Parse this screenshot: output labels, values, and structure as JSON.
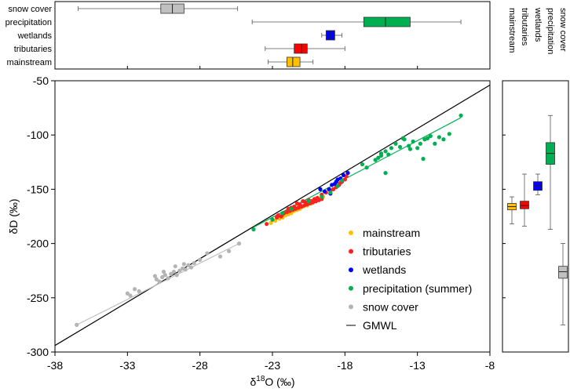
{
  "chart_data": [
    {
      "id": "top-box",
      "type": "box",
      "orientation": "horizontal",
      "categories": [
        "snow cover",
        "precipitation",
        "wetlands",
        "tributaries",
        "mainstream"
      ],
      "boxes": [
        {
          "name": "snow cover",
          "color": "#c0c0c0",
          "whisker_low": -36.4,
          "q1": -30.7,
          "median": -29.9,
          "q3": -29.1,
          "whisker_high": -25.4
        },
        {
          "name": "precipitation",
          "color": "#00b050",
          "whisker_low": -24.4,
          "q1": -16.7,
          "median": -15.2,
          "q3": -13.5,
          "whisker_high": -10.0
        },
        {
          "name": "wetlands",
          "color": "#0000ff",
          "whisker_low": -19.6,
          "q1": -19.3,
          "median": -19.0,
          "q3": -18.7,
          "whisker_high": -18.2
        },
        {
          "name": "tributaries",
          "color": "#ff0000",
          "whisker_low": -23.5,
          "q1": -21.5,
          "median": -21.0,
          "q3": -20.6,
          "whisker_high": -18.0
        },
        {
          "name": "mainstream",
          "color": "#ffc000",
          "whisker_low": -23.3,
          "q1": -22.0,
          "median": -21.6,
          "q3": -21.1,
          "whisker_high": -20.2
        }
      ],
      "xlim": [
        -38,
        -8
      ]
    },
    {
      "id": "scatter",
      "type": "scatter",
      "xlabel_main": "δ",
      "xlabel_sup": "18",
      "xlabel_rest": "O (‰)",
      "ylabel": "δD (‰)",
      "xlim": [
        -38,
        -8
      ],
      "ylim": [
        -300,
        -50
      ],
      "x_ticks": [
        "-38",
        "-33",
        "-28",
        "-23",
        "-18",
        "-13",
        "-8"
      ],
      "y_ticks": [
        "-50",
        "-100",
        "-150",
        "-200",
        "-250",
        "-300"
      ],
      "gmwl": {
        "name": "GMWL",
        "slope": 8,
        "intercept": 10
      },
      "fit_lines": [
        {
          "series": "snow cover",
          "color": "#c0c0c0",
          "x": [
            -36.5,
            -25.3
          ],
          "y": [
            -275,
            -200
          ]
        },
        {
          "series": "precipitation",
          "color": "#00b050",
          "x": [
            -24.3,
            -10.0
          ],
          "y": [
            -185,
            -84
          ]
        }
      ],
      "series": [
        {
          "name": "mainstream",
          "color": "#ffc000",
          "points": [
            [
              -23.1,
              -181
            ],
            [
              -22.8,
              -179
            ],
            [
              -22.5,
              -177
            ],
            [
              -22.3,
              -176
            ],
            [
              -22.1,
              -174
            ],
            [
              -21.9,
              -173
            ],
            [
              -21.7,
              -172
            ],
            [
              -21.5,
              -170
            ],
            [
              -21.3,
              -169
            ],
            [
              -21.1,
              -168
            ],
            [
              -20.9,
              -166
            ],
            [
              -20.6,
              -165
            ],
            [
              -20.3,
              -163
            ],
            [
              -20.0,
              -161
            ],
            [
              -19.8,
              -159
            ],
            [
              -19.5,
              -157
            ],
            [
              -21.8,
              -170
            ],
            [
              -21.2,
              -166
            ],
            [
              -20.7,
              -163
            ]
          ]
        },
        {
          "name": "tributaries",
          "color": "#ff2020",
          "points": [
            [
              -23.4,
              -182
            ],
            [
              -23.0,
              -178
            ],
            [
              -22.7,
              -176
            ],
            [
              -22.4,
              -175
            ],
            [
              -22.2,
              -172
            ],
            [
              -22.0,
              -171
            ],
            [
              -21.8,
              -170
            ],
            [
              -21.6,
              -169
            ],
            [
              -21.4,
              -168
            ],
            [
              -21.2,
              -167
            ],
            [
              -21.0,
              -166
            ],
            [
              -20.8,
              -165
            ],
            [
              -20.6,
              -164
            ],
            [
              -20.4,
              -163
            ],
            [
              -20.2,
              -162
            ],
            [
              -20.0,
              -161
            ],
            [
              -19.8,
              -160
            ],
            [
              -19.6,
              -159
            ],
            [
              -22.6,
              -174
            ],
            [
              -22.3,
              -173
            ],
            [
              -21.9,
              -168
            ],
            [
              -21.5,
              -166
            ],
            [
              -21.1,
              -164
            ],
            [
              -20.7,
              -162
            ],
            [
              -20.3,
              -161
            ],
            [
              -19.9,
              -158
            ],
            [
              -19.6,
              -155
            ],
            [
              -19.3,
              -153
            ],
            [
              -19.0,
              -151
            ],
            [
              -18.8,
              -150
            ],
            [
              -18.6,
              -148
            ],
            [
              -18.4,
              -146
            ],
            [
              -18.3,
              -144
            ],
            [
              -18.2,
              -143
            ],
            [
              -18.0,
              -141
            ],
            [
              -17.9,
              -138
            ],
            [
              -21.7,
              -167
            ],
            [
              -21.3,
              -163
            ],
            [
              -20.9,
              -161
            ],
            [
              -20.5,
              -160
            ],
            [
              -20.1,
              -159
            ]
          ]
        },
        {
          "name": "wetlands",
          "color": "#0000ff",
          "points": [
            [
              -19.7,
              -150
            ],
            [
              -19.4,
              -152
            ],
            [
              -19.1,
              -150
            ],
            [
              -18.9,
              -146
            ],
            [
              -18.7,
              -145
            ],
            [
              -18.5,
              -141
            ],
            [
              -18.3,
              -140
            ],
            [
              -18.1,
              -137
            ],
            [
              -17.8,
              -135
            ],
            [
              -19.0,
              -154
            ],
            [
              -18.6,
              -143
            ]
          ]
        },
        {
          "name": "precipitation (summer)",
          "color": "#00b050",
          "points": [
            [
              -24.3,
              -187
            ],
            [
              -23.0,
              -178
            ],
            [
              -22.3,
              -172
            ],
            [
              -21.7,
              -168
            ],
            [
              -20.5,
              -161
            ],
            [
              -19.6,
              -157
            ],
            [
              -19.0,
              -153
            ],
            [
              -18.5,
              -147
            ],
            [
              -18.2,
              -142
            ],
            [
              -16.8,
              -127
            ],
            [
              -16.5,
              -130
            ],
            [
              -15.9,
              -123
            ],
            [
              -15.7,
              -121
            ],
            [
              -15.5,
              -119
            ],
            [
              -15.2,
              -115
            ],
            [
              -15.0,
              -118
            ],
            [
              -14.8,
              -112
            ],
            [
              -14.5,
              -108
            ],
            [
              -14.2,
              -111
            ],
            [
              -13.9,
              -104
            ],
            [
              -13.6,
              -110
            ],
            [
              -13.3,
              -106
            ],
            [
              -13.0,
              -112
            ],
            [
              -12.8,
              -108
            ],
            [
              -12.5,
              -104
            ],
            [
              -12.1,
              -101
            ],
            [
              -11.8,
              -108
            ],
            [
              -11.5,
              -102
            ],
            [
              -11.2,
              -104
            ],
            [
              -10.8,
              -99
            ],
            [
              -10.0,
              -82
            ],
            [
              -15.2,
              -135
            ],
            [
              -12.6,
              -122
            ],
            [
              -14.0,
              -103
            ],
            [
              -13.5,
              -113
            ],
            [
              -15.5,
              -117
            ],
            [
              -12.3,
              -103
            ]
          ]
        },
        {
          "name": "snow cover",
          "color": "#b4b4b4",
          "points": [
            [
              -36.5,
              -275
            ],
            [
              -33.0,
              -246
            ],
            [
              -32.8,
              -248
            ],
            [
              -32.5,
              -242
            ],
            [
              -32.2,
              -244
            ],
            [
              -31.0,
              -233
            ],
            [
              -30.8,
              -235
            ],
            [
              -30.6,
              -231
            ],
            [
              -30.4,
              -229
            ],
            [
              -30.2,
              -232
            ],
            [
              -30.0,
              -228
            ],
            [
              -29.8,
              -226
            ],
            [
              -29.6,
              -229
            ],
            [
              -29.4,
              -225
            ],
            [
              -29.2,
              -223
            ],
            [
              -29.0,
              -224
            ],
            [
              -28.8,
              -220
            ],
            [
              -28.6,
              -222
            ],
            [
              -28.4,
              -218
            ],
            [
              -28.0,
              -215
            ],
            [
              -27.5,
              -209
            ],
            [
              -26.6,
              -212
            ],
            [
              -26.0,
              -207
            ],
            [
              -25.3,
              -200
            ],
            [
              -31.1,
              -230
            ],
            [
              -29.7,
              -221
            ],
            [
              -30.5,
              -226
            ],
            [
              -29.1,
              -219
            ]
          ]
        }
      ],
      "legend": [
        "mainstream",
        "tributaries",
        "wetlands",
        "precipitation (summer)",
        "snow cover",
        "GMWL"
      ]
    },
    {
      "id": "right-box",
      "type": "box",
      "orientation": "vertical",
      "categories": [
        "mainstream",
        "tributaries",
        "wetlands",
        "precipitation",
        "snow cover"
      ],
      "boxes": [
        {
          "name": "mainstream",
          "color": "#ffc000",
          "whisker_low": -182,
          "q1": -169,
          "median": -166,
          "q3": -163,
          "whisker_high": -157
        },
        {
          "name": "tributaries",
          "color": "#ff0000",
          "whisker_low": -184,
          "q1": -168,
          "median": -165,
          "q3": -161,
          "whisker_high": -136
        },
        {
          "name": "wetlands",
          "color": "#0000ff",
          "whisker_low": -155,
          "q1": -151,
          "median": -147,
          "q3": -143,
          "whisker_high": -136
        },
        {
          "name": "precipitation",
          "color": "#00b050",
          "whisker_low": -187,
          "q1": -127,
          "median": -117,
          "q3": -107,
          "whisker_high": -82
        },
        {
          "name": "snow cover",
          "color": "#c0c0c0",
          "whisker_low": -275,
          "q1": -232,
          "median": -226,
          "q3": -221,
          "whisker_high": -200
        }
      ],
      "ylim": [
        -300,
        -50
      ]
    }
  ]
}
